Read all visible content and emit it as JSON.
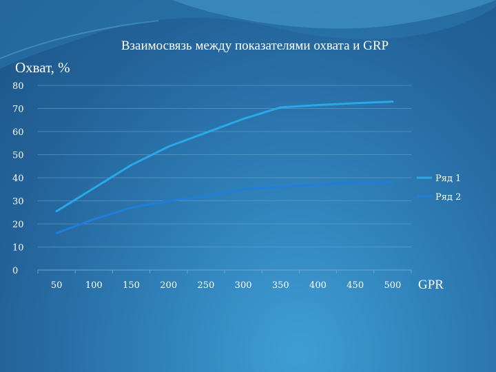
{
  "chart_data": {
    "type": "line",
    "title": "Взаимосвязь между показателями охвата и GRP",
    "xlabel": "GPR",
    "ylabel": "Охват, %",
    "x": [
      50,
      100,
      150,
      200,
      250,
      300,
      350,
      400,
      450,
      500
    ],
    "ylim": [
      0,
      80
    ],
    "yticks": [
      0,
      10,
      20,
      30,
      40,
      50,
      60,
      70,
      80
    ],
    "grid": true,
    "legend_position": "right",
    "series": [
      {
        "name": "Ряд 1",
        "color": "#29a9e8",
        "values": [
          25.5,
          35.5,
          45.5,
          53.5,
          59.5,
          65.5,
          70.5,
          71.5,
          72.3,
          73
        ]
      },
      {
        "name": "Ряд 2",
        "color": "#1f7fd8",
        "values": [
          16,
          22,
          27,
          30,
          32,
          35,
          36,
          37,
          38,
          38
        ]
      }
    ]
  }
}
